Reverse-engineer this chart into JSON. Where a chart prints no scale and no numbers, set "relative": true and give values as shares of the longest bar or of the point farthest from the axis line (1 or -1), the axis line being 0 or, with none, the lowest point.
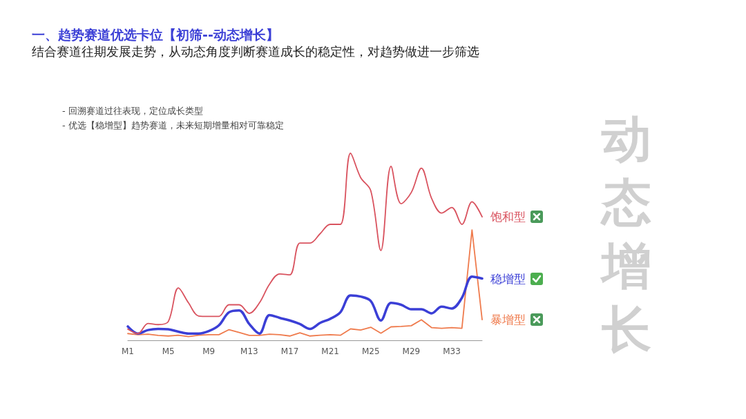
{
  "chart_data": {
    "type": "line",
    "relative": true,
    "title": "一、趋势赛道优选卡位【初筛--动态增长】",
    "subtitle": "结合赛道往期发展走势，从动态角度判断赛道成长的稳定性，对趋势做进一步筛选",
    "annotations": [
      "- 回溯赛道过往表现，定位成长类型",
      "- 优选【稳增型】趋势赛道，未来短期增量相对可靠稳定",
      "动态增长"
    ],
    "categories": [
      "M1",
      null,
      null,
      null,
      "M5",
      null,
      null,
      null,
      "M9",
      null,
      null,
      null,
      "M13",
      null,
      null,
      null,
      "M17",
      null,
      null,
      null,
      "M21",
      null,
      null,
      null,
      "M25",
      null,
      null,
      null,
      "M29",
      null,
      null,
      null,
      "M33",
      null,
      null,
      null
    ],
    "series": [
      {
        "name": "饱和型",
        "color": "#d9535f",
        "values": [
          0.06,
          0.036,
          0.09,
          0.084,
          0.1,
          0.28,
          0.2,
          0.13,
          0.128,
          0.128,
          0.19,
          0.19,
          0.144,
          0.2,
          0.3,
          0.355,
          0.35,
          0.52,
          0.52,
          0.57,
          0.62,
          0.62,
          1.0,
          0.87,
          0.8,
          0.48,
          0.93,
          0.73,
          0.79,
          0.92,
          0.76,
          0.68,
          0.71,
          0.62,
          0.74,
          0.66
        ]
      },
      {
        "name": "稳增型",
        "color": "#3b3fd6",
        "values": [
          0.074,
          0.036,
          0.055,
          0.061,
          0.059,
          0.046,
          0.036,
          0.036,
          0.049,
          0.08,
          0.15,
          0.16,
          0.087,
          0.036,
          0.135,
          0.12,
          0.106,
          0.087,
          0.061,
          0.093,
          0.115,
          0.15,
          0.24,
          0.234,
          0.21,
          0.106,
          0.2,
          0.19,
          0.166,
          0.166,
          0.144,
          0.18,
          0.17,
          0.227,
          0.34,
          0.33
        ]
      },
      {
        "name": "暴增型",
        "color": "#ef7b4d",
        "values": [
          0.036,
          0.03,
          0.033,
          0.026,
          0.023,
          0.027,
          0.02,
          0.027,
          0.03,
          0.03,
          0.057,
          0.042,
          0.026,
          0.026,
          0.033,
          0.03,
          0.023,
          0.04,
          0.023,
          0.027,
          0.03,
          0.027,
          0.061,
          0.055,
          0.07,
          0.038,
          0.072,
          0.074,
          0.078,
          0.11,
          0.068,
          0.064,
          0.068,
          0.064,
          0.59,
          0.11
        ]
      }
    ],
    "grid": false,
    "legend": false,
    "marker": "none",
    "line_style": "solid"
  }
}
